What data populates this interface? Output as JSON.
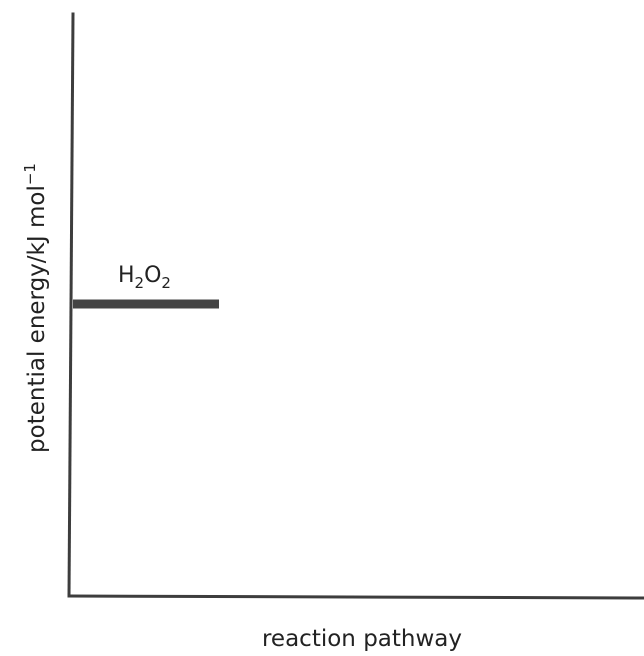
{
  "axes": {
    "y_label_main": "potential energy/kJ mol",
    "y_label_superscript": "−1",
    "x_label": "reaction pathway"
  },
  "levels": [
    {
      "symbol": "H",
      "sub1": "2",
      "symbol2": "O",
      "sub2": "2",
      "formula": "H2O2"
    }
  ]
}
